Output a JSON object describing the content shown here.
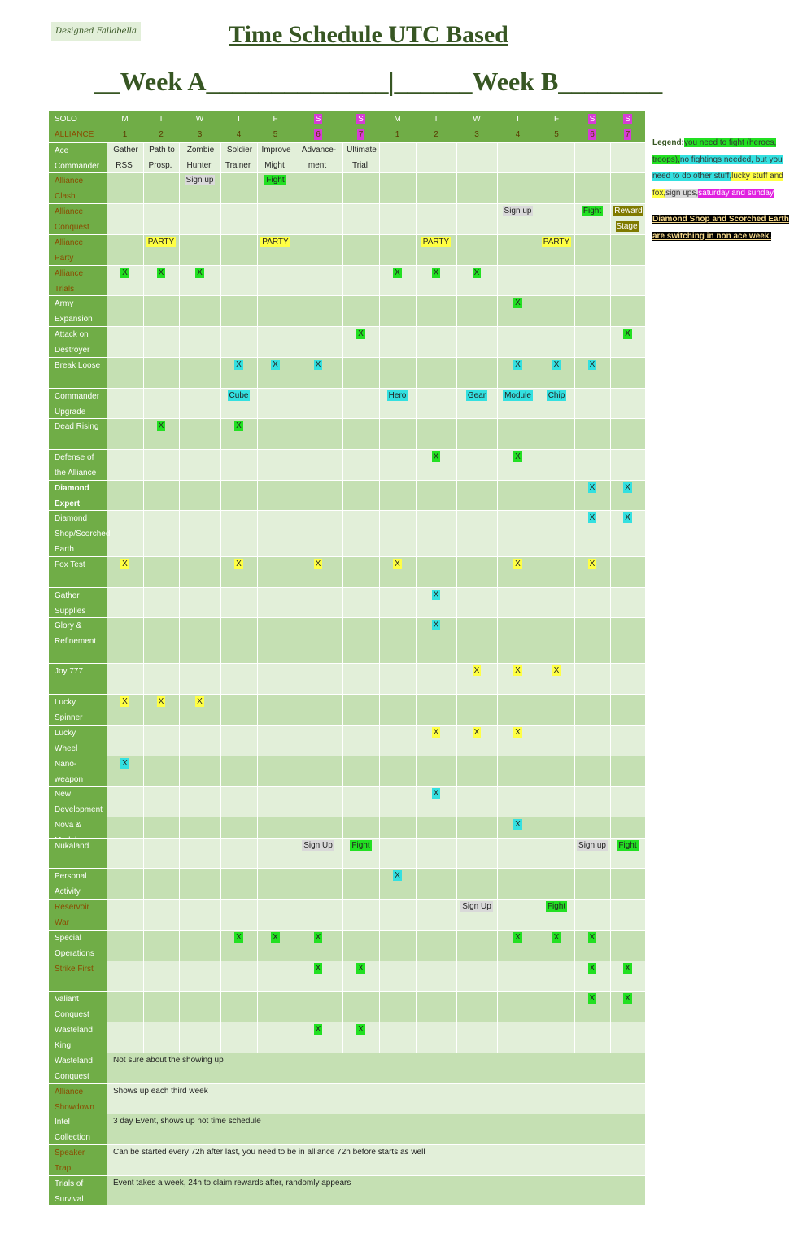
{
  "header": {
    "designer": "Designed Fallabella",
    "title": "Time Schedule UTC Based",
    "weeks": "__Week A______________|______Week B________"
  },
  "table": {
    "top_labels": [
      "SOLO",
      "ALLIANCE"
    ],
    "columns": [
      {
        "day": "M",
        "num": 1
      },
      {
        "day": "T",
        "num": 2
      },
      {
        "day": "W",
        "num": 3
      },
      {
        "day": "T",
        "num": 4
      },
      {
        "day": "F",
        "num": 5
      },
      {
        "day": "S",
        "num": 6,
        "color": "#d63bd6"
      },
      {
        "day": "S",
        "num": 7,
        "color": "#d63bd6"
      },
      {
        "day": "M",
        "num": 1
      },
      {
        "day": "T",
        "num": 2
      },
      {
        "day": "W",
        "num": 3
      },
      {
        "day": "T",
        "num": 4
      },
      {
        "day": "F",
        "num": 5
      },
      {
        "day": "S",
        "num": 6,
        "color": "#d63bd6"
      },
      {
        "day": "S",
        "num": 7,
        "color": "#d63bd6"
      }
    ],
    "rows": [
      {
        "label": "Ace Commander",
        "cells": {
          "0": {
            "text": "Gather RSS"
          },
          "1": {
            "text": "Path to Prosp."
          },
          "2": {
            "text": "Zombie Hunter"
          },
          "3": {
            "text": "Soldier Trainer"
          },
          "4": {
            "text": "Improve Might"
          },
          "5": {
            "text": "Advance-\nment"
          },
          "6": {
            "text": "Ultimate Trial"
          }
        }
      },
      {
        "label": "Alliance Clash",
        "label_color": "#8a4b00",
        "cells": {
          "2": {
            "text": "Sign up",
            "color": "#d9d9d9"
          },
          "4": {
            "text": "Fight",
            "color": "#22e022"
          }
        }
      },
      {
        "label": "Alliance Conquest",
        "label_color": "#8a4b00",
        "cells": {
          "10": {
            "text": "Sign up",
            "color": "#d9d9d9"
          },
          "12": {
            "text": "Fight",
            "color": "#22e022"
          },
          "13": {
            "text": "Reward Stage",
            "color": "#7f7a00",
            "text_color": "#ffffff"
          }
        }
      },
      {
        "label": "Alliance Party",
        "label_color": "#8a4b00",
        "cells": {
          "1": {
            "text": "PARTY",
            "color": "#ffff44"
          },
          "4": {
            "text": "PARTY",
            "color": "#ffff44"
          },
          "8": {
            "text": "PARTY",
            "color": "#ffff44"
          },
          "11": {
            "text": "PARTY",
            "color": "#ffff44"
          }
        }
      },
      {
        "label": "Alliance Trials",
        "label_color": "#8a4b00",
        "cells": {
          "0": {
            "text": "X",
            "color": "#22e022"
          },
          "1": {
            "text": "X",
            "color": "#22e022"
          },
          "2": {
            "text": "X",
            "color": "#22e022"
          },
          "7": {
            "text": "X",
            "color": "#22e022"
          },
          "8": {
            "text": "X",
            "color": "#22e022"
          },
          "9": {
            "text": "X",
            "color": "#22e022"
          }
        }
      },
      {
        "label": "Army Expansion",
        "cells": {
          "10": {
            "text": "X",
            "color": "#22e022"
          }
        }
      },
      {
        "label": "Attack on Destroyer",
        "cells": {
          "6": {
            "text": "X",
            "color": "#22e022"
          },
          "13": {
            "text": "X",
            "color": "#22e022"
          }
        }
      },
      {
        "label": "Break Loose",
        "cells": {
          "3": {
            "text": "X",
            "color": "#33e0e0"
          },
          "4": {
            "text": "X",
            "color": "#33e0e0"
          },
          "5": {
            "text": "X",
            "color": "#33e0e0"
          },
          "10": {
            "text": "X",
            "color": "#33e0e0"
          },
          "11": {
            "text": "X",
            "color": "#33e0e0"
          },
          "12": {
            "text": "X",
            "color": "#33e0e0"
          }
        }
      },
      {
        "label": "Commander Upgrade",
        "cells": {
          "3": {
            "text": "Cube",
            "color": "#33e0e0"
          },
          "7": {
            "text": "Hero",
            "color": "#33e0e0"
          },
          "9": {
            "text": "Gear",
            "color": "#33e0e0"
          },
          "10": {
            "text": "Module",
            "color": "#33e0e0"
          },
          "11": {
            "text": "Chip",
            "color": "#33e0e0"
          }
        }
      },
      {
        "label": "Dead Rising",
        "cells": {
          "1": {
            "text": "X",
            "color": "#22e022"
          },
          "3": {
            "text": "X",
            "color": "#22e022"
          }
        }
      },
      {
        "label": "Defense of the Alliance",
        "cells": {
          "8": {
            "text": "X",
            "color": "#22e022"
          },
          "10": {
            "text": "X",
            "color": "#22e022"
          }
        }
      },
      {
        "label": "Diamond Expert",
        "bold": true,
        "cells": {
          "12": {
            "text": "X",
            "color": "#33e0e0"
          },
          "13": {
            "text": "X",
            "color": "#33e0e0"
          }
        }
      },
      {
        "label": "Diamond Shop/Scorched Earth",
        "cells": {
          "12": {
            "text": "X",
            "color": "#33e0e0"
          },
          "13": {
            "text": "X",
            "color": "#33e0e0"
          }
        }
      },
      {
        "label": "Fox Test",
        "cells": {
          "0": {
            "text": "X",
            "color": "#ffff44"
          },
          "3": {
            "text": "X",
            "color": "#ffff44"
          },
          "5": {
            "text": "X",
            "color": "#ffff44"
          },
          "7": {
            "text": "X",
            "color": "#ffff44"
          },
          "10": {
            "text": "X",
            "color": "#ffff44"
          },
          "12": {
            "text": "X",
            "color": "#ffff44"
          }
        }
      },
      {
        "label": "Gather Supplies",
        "cells": {
          "8": {
            "text": "X",
            "color": "#33e0e0"
          }
        }
      },
      {
        "label": "Glory & Refinement",
        "cells": {
          "8": {
            "text": "X",
            "color": "#33e0e0"
          }
        }
      },
      {
        "label": "Joy 777",
        "cells": {
          "9": {
            "text": "X",
            "color": "#ffff44"
          },
          "10": {
            "text": "X",
            "color": "#ffff44"
          },
          "11": {
            "text": "X",
            "color": "#ffff44"
          }
        }
      },
      {
        "label": "Lucky Spinner",
        "cells": {
          "0": {
            "text": "X",
            "color": "#ffff44"
          },
          "1": {
            "text": "X",
            "color": "#ffff44"
          },
          "2": {
            "text": "X",
            "color": "#ffff44"
          }
        }
      },
      {
        "label": "Lucky Wheel",
        "cells": {
          "8": {
            "text": "X",
            "color": "#ffff44"
          },
          "9": {
            "text": "X",
            "color": "#ffff44"
          },
          "10": {
            "text": "X",
            "color": "#ffff44"
          }
        }
      },
      {
        "label": "Nano-weapon",
        "cells": {
          "0": {
            "text": "X",
            "color": "#33e0e0"
          }
        }
      },
      {
        "label": "New Development",
        "cells": {
          "8": {
            "text": "X",
            "color": "#33e0e0"
          }
        }
      },
      {
        "label": "Nova & Module",
        "cells": {
          "10": {
            "text": "X",
            "color": "#33e0e0"
          }
        }
      },
      {
        "label": "Nukaland",
        "cells": {
          "5": {
            "text": "Sign Up",
            "color": "#d9d9d9"
          },
          "6": {
            "text": "Fight",
            "color": "#22e022"
          },
          "12": {
            "text": "Sign up",
            "color": "#d9d9d9"
          },
          "13": {
            "text": "Fight",
            "color": "#22e022"
          }
        }
      },
      {
        "label": "Personal Activity",
        "cells": {
          "7": {
            "text": "X",
            "color": "#33e0e0"
          }
        }
      },
      {
        "label": "Reservoir War",
        "label_color": "#8a4b00",
        "cells": {
          "9": {
            "text": "Sign Up",
            "color": "#d9d9d9"
          },
          "11": {
            "text": "Fight",
            "color": "#22e022"
          }
        }
      },
      {
        "label": "Special Operations",
        "cells": {
          "3": {
            "text": "X",
            "color": "#22e022"
          },
          "4": {
            "text": "X",
            "color": "#22e022"
          },
          "5": {
            "text": "X",
            "color": "#22e022"
          },
          "10": {
            "text": "X",
            "color": "#22e022"
          },
          "11": {
            "text": "X",
            "color": "#22e022"
          },
          "12": {
            "text": "X",
            "color": "#22e022"
          }
        }
      },
      {
        "label": "Strike First",
        "label_color": "#8a4b00",
        "cells": {
          "5": {
            "text": "X",
            "color": "#22e022"
          },
          "6": {
            "text": "X",
            "color": "#22e022"
          },
          "12": {
            "text": "X",
            "color": "#22e022"
          },
          "13": {
            "text": "X",
            "color": "#22e022"
          }
        }
      },
      {
        "label": "Valiant Conquest",
        "cells": {
          "12": {
            "text": "X",
            "color": "#22e022"
          },
          "13": {
            "text": "X",
            "color": "#22e022"
          }
        }
      },
      {
        "label": "Wasteland King",
        "cells": {
          "5": {
            "text": "X",
            "color": "#22e022"
          },
          "6": {
            "text": "X",
            "color": "#22e022"
          }
        }
      },
      {
        "label": "Wasteland Conquest",
        "note": "Not sure about the showing up"
      },
      {
        "label": "Alliance Showdown",
        "label_color": "#8a4b00",
        "note": "Shows up each third week"
      },
      {
        "label": "Intel Collection",
        "note": "3 day Event, shows up not time schedule"
      },
      {
        "label": "Speaker Trap",
        "label_color": "#8a4b00",
        "note": "Can be started every 72h after last, you need to be in alliance 72h before starts as well"
      },
      {
        "label": "Trials of Survival",
        "note": "Event takes a week, 24h to claim rewards after, randomly appears"
      }
    ]
  },
  "legend": {
    "title": "Legend:",
    "items": [
      {
        "text": "you need to fight (heroes, troops),",
        "color": "#22e022"
      },
      {
        "text": "no fightings needed, but you need to do other stuff,",
        "color": "#33e0e0"
      },
      {
        "text": "lucky stuff and fox,",
        "color": "#ffff44"
      },
      {
        "text": "sign ups,",
        "color": "#d9d9d9"
      },
      {
        "text": "saturday and sunday",
        "color": "#e020e0"
      }
    ],
    "note": "Diamond Shop and Scorched Earth are switching in non ace week."
  }
}
